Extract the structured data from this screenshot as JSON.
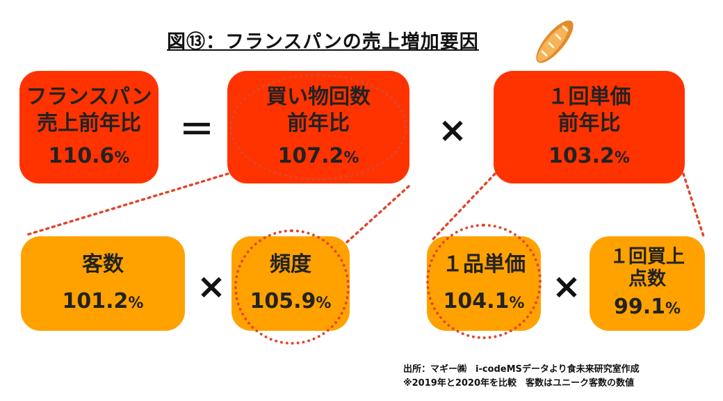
{
  "title": "図⑬：フランスパンの売上増加要因",
  "boxes": {
    "total": {
      "label1": "フランスパン",
      "label2": "売上前年比",
      "value": "110.6",
      "unit": "%"
    },
    "shopping": {
      "label1": "買い物回数",
      "label2": "前年比",
      "value": "107.2",
      "unit": "%"
    },
    "unit_price": {
      "label1": "１回単価",
      "label2": "前年比",
      "value": "103.2",
      "unit": "%"
    },
    "customers": {
      "label1": "客数",
      "value": "101.2",
      "unit": "%"
    },
    "frequency": {
      "label1": "頻度",
      "value": "105.9",
      "unit": "%"
    },
    "item_price": {
      "label1": "１品単価",
      "value": "104.1",
      "unit": "%"
    },
    "items_per_visit": {
      "label1": "１回買上",
      "label2": "点数",
      "value": "99.1",
      "unit": "%"
    }
  },
  "operators": {
    "equals": "＝",
    "times": "×"
  },
  "source": {
    "line1": "出所：マギー㈱　i-codeMSデータより食未来研究室作成",
    "line2": "※2019年と2020年を比較　客数はユニーク客数の数値"
  },
  "colors": {
    "red_box": "#ff3300",
    "orange_box": "#ffa200",
    "dotted": "#e0462a"
  },
  "icons": {
    "bread": "baguette-icon"
  }
}
